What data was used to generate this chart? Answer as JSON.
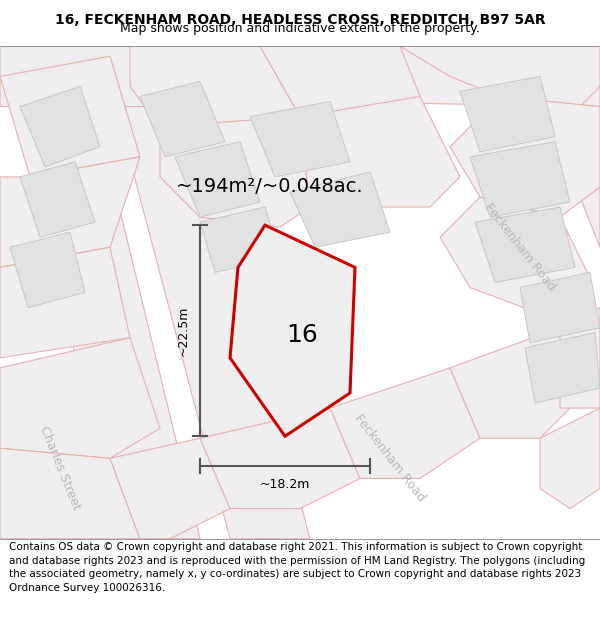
{
  "title_line1": "16, FECKENHAM ROAD, HEADLESS CROSS, REDDITCH, B97 5AR",
  "title_line2": "Map shows position and indicative extent of the property.",
  "footer_text": "Contains OS data © Crown copyright and database right 2021. This information is subject to Crown copyright and database rights 2023 and is reproduced with the permission of HM Land Registry. The polygons (including the associated geometry, namely x, y co-ordinates) are subject to Crown copyright and database rights 2023 Ordnance Survey 100026316.",
  "area_label": "~194m²/~0.048ac.",
  "number_label": "16",
  "dim_width": "~18.2m",
  "dim_height": "~22.5m",
  "road_label_tr": "Feckenham Road",
  "road_label_bc": "Feckenham Road",
  "road_label_l": "Charles Street",
  "map_bg": "#f7f4f4",
  "road_line_color": "#e8b0b0",
  "road_fill": "#f0eeee",
  "building_fill": "#e2e2e2",
  "building_edge": "#c8c8c8",
  "plot_fill": "#efefef",
  "plot_edge": "#cc0000",
  "inner_fill": "#d8d8d8",
  "inner_edge": "#c0c0c0",
  "dim_color": "#555555",
  "road_text_color": "#b8b8b8",
  "title_fs": 10,
  "subtitle_fs": 9,
  "footer_fs": 7.5,
  "area_fs": 14,
  "number_fs": 18,
  "dim_fs": 9,
  "road_fs": 9
}
